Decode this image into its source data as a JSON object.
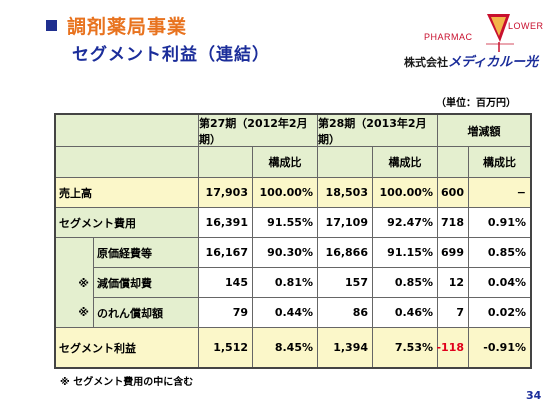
{
  "header": {
    "title_line1": "調剤薬局事業",
    "title_line2": "セグメント利益（連結）"
  },
  "logo": {
    "pharmac": "PHARMAC",
    "flower": "LOWER",
    "company_prefix": "株式会社",
    "company_brand": "メディカルー光"
  },
  "unit_label": "（単位：百万円）",
  "table": {
    "headers": {
      "period1": "第27期（2012年2月期）",
      "period2": "第28期（2013年2月期）",
      "change": "増減額",
      "ratio": "構成比"
    },
    "rows": [
      {
        "label": "売上高",
        "v1": "17,903",
        "r1": "100.00%",
        "v2": "18,503",
        "r2": "100.00%",
        "d": "600",
        "dr": "−"
      },
      {
        "label": "セグメント費用",
        "v1": "16,391",
        "r1": "91.55%",
        "v2": "17,109",
        "r2": "92.47%",
        "d": "718",
        "dr": "0.91%"
      },
      {
        "label": "原価経費等",
        "v1": "16,167",
        "r1": "90.30%",
        "v2": "16,866",
        "r2": "91.15%",
        "d": "699",
        "dr": "0.85%"
      },
      {
        "mark": "※",
        "label": "減価償却費",
        "v1": "145",
        "r1": "0.81%",
        "v2": "157",
        "r2": "0.85%",
        "d": "12",
        "dr": "0.04%"
      },
      {
        "mark": "※",
        "label": "のれん償却額",
        "v1": "79",
        "r1": "0.44%",
        "v2": "86",
        "r2": "0.46%",
        "d": "7",
        "dr": "0.02%"
      },
      {
        "label": "セグメント利益",
        "v1": "1,512",
        "r1": "8.45%",
        "v2": "1,394",
        "r2": "7.53%",
        "d": "-118",
        "dr": "-0.91%"
      }
    ]
  },
  "footnote": "※ セグメント費用の中に含む",
  "page_number": "34",
  "colors": {
    "accent_orange": "#e8731f",
    "accent_navy": "#1b2d9a",
    "cell_green": "#e4efcf",
    "cell_yellow": "#fbf7c9",
    "negative_red": "#e0001b"
  }
}
